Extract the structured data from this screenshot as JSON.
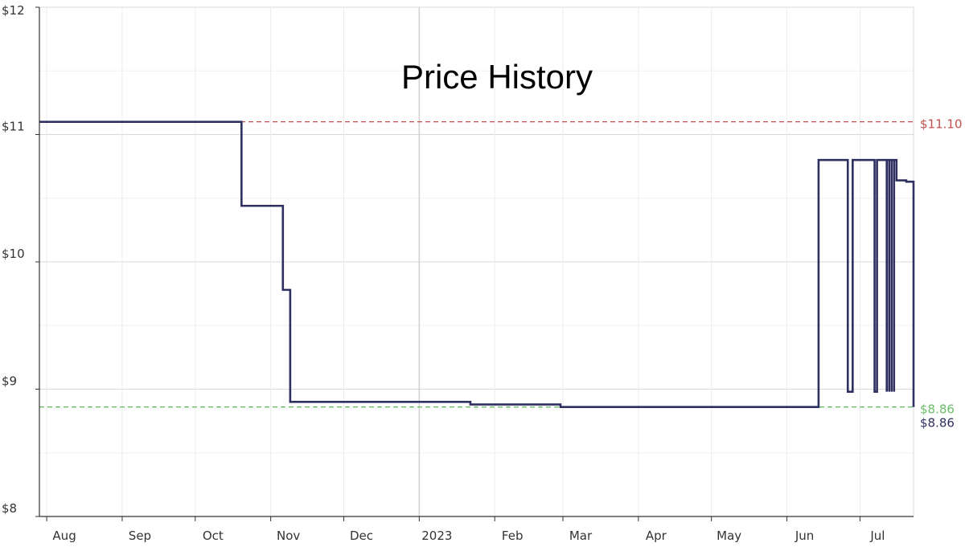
{
  "chart_data": {
    "type": "line",
    "step": true,
    "title": "Price History",
    "x_domain": [
      "2022-07-29",
      "2023-07-23"
    ],
    "ylim": [
      8,
      12
    ],
    "y_ticks": [
      {
        "value": 8,
        "label": "$8"
      },
      {
        "value": 9,
        "label": "$9"
      },
      {
        "value": 10,
        "label": "$10"
      },
      {
        "value": 11,
        "label": "$11"
      },
      {
        "value": 12,
        "label": "$12"
      }
    ],
    "x_ticks": [
      {
        "date": "2022-08-01",
        "label": "Aug"
      },
      {
        "date": "2022-09-01",
        "label": "Sep"
      },
      {
        "date": "2022-10-01",
        "label": "Oct"
      },
      {
        "date": "2022-11-01",
        "label": "Nov"
      },
      {
        "date": "2022-12-01",
        "label": "Dec"
      },
      {
        "date": "2023-01-01",
        "label": "2023"
      },
      {
        "date": "2023-02-01",
        "label": "Feb"
      },
      {
        "date": "2023-03-01",
        "label": "Mar"
      },
      {
        "date": "2023-04-01",
        "label": "Apr"
      },
      {
        "date": "2023-05-01",
        "label": "May"
      },
      {
        "date": "2023-06-01",
        "label": "Jun"
      },
      {
        "date": "2023-07-01",
        "label": "Jul"
      }
    ],
    "grid": true,
    "reference_lines": [
      {
        "value": 11.1,
        "label": "$11.10",
        "color": "#c0504d"
      },
      {
        "value": 8.86,
        "label": "$8.86",
        "color": "#6abf69"
      }
    ],
    "current_label": {
      "value": 8.86,
      "label": "$8.86",
      "color": "#2e3060"
    },
    "series": [
      {
        "color": "#2e3060",
        "points": [
          {
            "x": "2022-07-29",
            "y": 11.1
          },
          {
            "x": "2022-10-20",
            "y": 10.44
          },
          {
            "x": "2022-11-06",
            "y": 9.78
          },
          {
            "x": "2022-11-09",
            "y": 8.9
          },
          {
            "x": "2023-01-22",
            "y": 8.88
          },
          {
            "x": "2023-02-28",
            "y": 8.86
          },
          {
            "x": "2023-06-14",
            "y": 10.8
          },
          {
            "x": "2023-06-26",
            "y": 8.98
          },
          {
            "x": "2023-06-28",
            "y": 10.8
          },
          {
            "x": "2023-07-07",
            "y": 8.98
          },
          {
            "x": "2023-07-08",
            "y": 10.8
          },
          {
            "x": "2023-07-12",
            "y": 8.98
          },
          {
            "x": "2023-07-12",
            "y": 10.8
          },
          {
            "x": "2023-07-13",
            "y": 8.98
          },
          {
            "x": "2023-07-13",
            "y": 10.8
          },
          {
            "x": "2023-07-14",
            "y": 8.98
          },
          {
            "x": "2023-07-14",
            "y": 10.8
          },
          {
            "x": "2023-07-15",
            "y": 8.98
          },
          {
            "x": "2023-07-15",
            "y": 10.8
          },
          {
            "x": "2023-07-16",
            "y": 10.64
          },
          {
            "x": "2023-07-20",
            "y": 10.63
          },
          {
            "x": "2023-07-23",
            "y": 8.86
          }
        ]
      }
    ]
  }
}
